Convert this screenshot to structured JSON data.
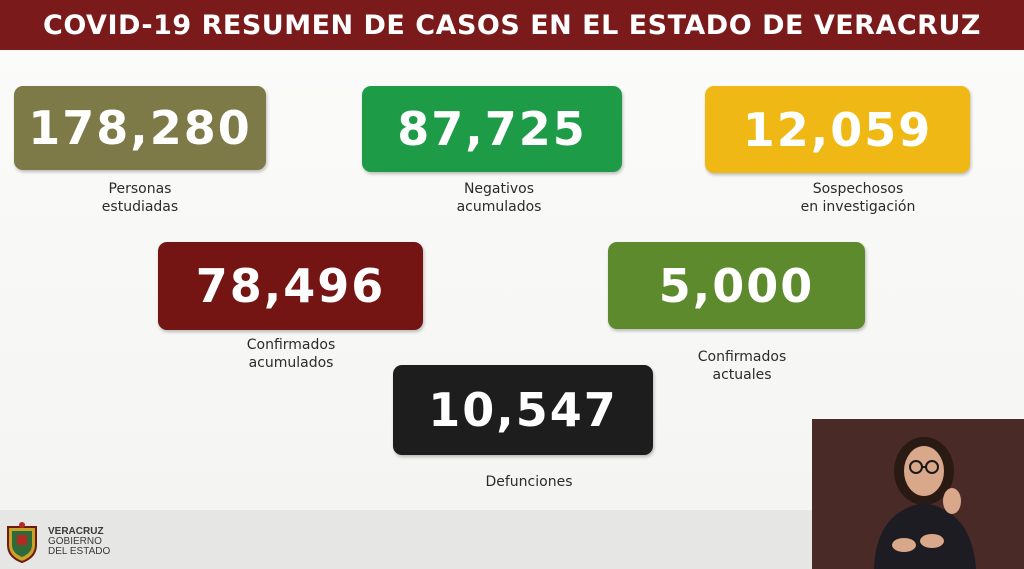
{
  "header": {
    "title": "COVID-19 RESUMEN DE CASOS EN EL ESTADO DE VERACRUZ"
  },
  "stats": [
    {
      "value": "178,280",
      "label_lines": [
        "Personas",
        "estudiadas"
      ],
      "color": "#7d7a47"
    },
    {
      "value": "87,725",
      "label_lines": [
        "Negativos",
        "acumulados"
      ],
      "color": "#1d9b46"
    },
    {
      "value": "12,059",
      "label_lines": [
        "Sospechosos",
        "en investigación"
      ],
      "color": "#f0b814"
    },
    {
      "value": "78,496",
      "label_lines": [
        "Confirmados",
        "acumulados"
      ],
      "color": "#741513"
    },
    {
      "value": "5,000",
      "label_lines": [
        "Confirmados",
        "actuales"
      ],
      "color": "#5c8a2c"
    },
    {
      "value": "10,547",
      "label_lines": [
        "Defunciones"
      ],
      "color": "#1d1d1d"
    }
  ],
  "logo": {
    "icon": "veracruz-shield-icon",
    "lines": [
      "VERACRUZ",
      "GOBIERNO",
      "DEL ESTADO"
    ]
  },
  "video": {
    "icon": "sign-language-interpreter-icon"
  }
}
